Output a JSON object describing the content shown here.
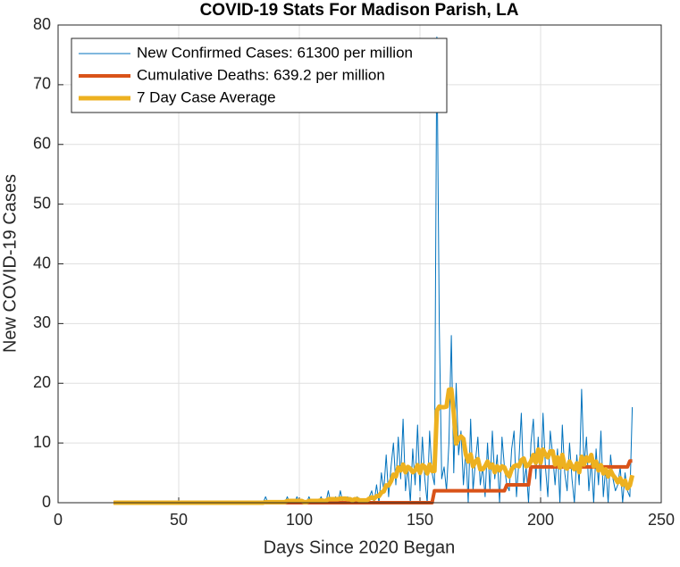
{
  "chart_data": {
    "type": "line",
    "title": "COVID-19 Stats For Madison Parish, LA",
    "x_label": "Days Since 2020 Began",
    "y_label": "New COVID-19 Cases",
    "xlim": [
      0,
      250
    ],
    "xticks": [
      0,
      50,
      100,
      150,
      200,
      250
    ],
    "ylim": [
      0,
      80
    ],
    "yticks": [
      0,
      10,
      20,
      30,
      40,
      50,
      60,
      70,
      80
    ],
    "grid": true,
    "legend": "upper-left",
    "x": [
      23,
      24,
      25,
      26,
      27,
      28,
      29,
      30,
      31,
      32,
      33,
      34,
      35,
      36,
      37,
      38,
      39,
      40,
      41,
      42,
      43,
      44,
      45,
      46,
      47,
      48,
      49,
      50,
      51,
      52,
      53,
      54,
      55,
      56,
      57,
      58,
      59,
      60,
      61,
      62,
      63,
      64,
      65,
      66,
      67,
      68,
      69,
      70,
      71,
      72,
      73,
      74,
      75,
      76,
      77,
      78,
      79,
      80,
      81,
      82,
      83,
      84,
      85,
      86,
      87,
      88,
      89,
      90,
      91,
      92,
      93,
      94,
      95,
      96,
      97,
      98,
      99,
      100,
      101,
      102,
      103,
      104,
      105,
      106,
      107,
      108,
      109,
      110,
      111,
      112,
      113,
      114,
      115,
      116,
      117,
      118,
      119,
      120,
      121,
      122,
      123,
      124,
      125,
      126,
      127,
      128,
      129,
      130,
      131,
      132,
      133,
      134,
      135,
      136,
      137,
      138,
      139,
      140,
      141,
      142,
      143,
      144,
      145,
      146,
      147,
      148,
      149,
      150,
      151,
      152,
      153,
      154,
      155,
      156,
      157,
      158,
      159,
      160,
      161,
      162,
      163,
      164,
      165,
      166,
      167,
      168,
      169,
      170,
      171,
      172,
      173,
      174,
      175,
      176,
      177,
      178,
      179,
      180,
      181,
      182,
      183,
      184,
      185,
      186,
      187,
      188,
      189,
      190,
      191,
      192,
      193,
      194,
      195,
      196,
      197,
      198,
      199,
      200,
      201,
      202,
      203,
      204,
      205,
      206,
      207,
      208,
      209,
      210,
      211,
      212,
      213,
      214,
      215,
      216,
      217,
      218,
      219,
      220,
      221,
      222,
      223,
      224,
      225,
      226,
      227,
      228,
      229,
      230,
      231,
      232,
      233,
      234,
      235,
      236,
      237,
      238
    ],
    "series": [
      {
        "name": "New Confirmed Cases: 61300 per million",
        "color": "#0072BD",
        "width": 1,
        "values": [
          0,
          0,
          0,
          0,
          0,
          0,
          0,
          0,
          0,
          0,
          0,
          0,
          0,
          0,
          0,
          0,
          0,
          0,
          0,
          0,
          0,
          0,
          0,
          0,
          0,
          0,
          0,
          0,
          0,
          0,
          0,
          0,
          0,
          0,
          0,
          0,
          0,
          0,
          0,
          0,
          0,
          0,
          0,
          0,
          0,
          0,
          0,
          0,
          0,
          0,
          0,
          0,
          0,
          0,
          0,
          0,
          0,
          0,
          0,
          0,
          0,
          0,
          0,
          1,
          0,
          0,
          0,
          0,
          0,
          0,
          0,
          0,
          1,
          0,
          0,
          0,
          1,
          0,
          0,
          0,
          0,
          1,
          0,
          0,
          0,
          0,
          1,
          0,
          0,
          2,
          0,
          0,
          1,
          0,
          2,
          0,
          0,
          1,
          0,
          0,
          0,
          1,
          0,
          0,
          0,
          0,
          1,
          2,
          0,
          3,
          0,
          5,
          2,
          8,
          1,
          6,
          10,
          3,
          11,
          4,
          14,
          2,
          6,
          0,
          9,
          3,
          13,
          2,
          11,
          4,
          0,
          12,
          5,
          3,
          78,
          30,
          4,
          6,
          2,
          10,
          28,
          5,
          20,
          8,
          12,
          3,
          9,
          0,
          14,
          2,
          7,
          11,
          3,
          6,
          1,
          10,
          2,
          12,
          4,
          8,
          0,
          11,
          6,
          3,
          2,
          9,
          12,
          1,
          7,
          15,
          3,
          6,
          0,
          10,
          14,
          4,
          11,
          2,
          15,
          6,
          1,
          12,
          8,
          3,
          9,
          0,
          13,
          5,
          2,
          10,
          4,
          0,
          8,
          3,
          19,
          6,
          11,
          2,
          7,
          0,
          9,
          3,
          12,
          1,
          6,
          0,
          8,
          4,
          2,
          3,
          6,
          0,
          5,
          2,
          1,
          16
        ]
      },
      {
        "name": "Cumulative Deaths: 639.2 per million",
        "color": "#D95319",
        "width": 4,
        "values": [
          0,
          0,
          0,
          0,
          0,
          0,
          0,
          0,
          0,
          0,
          0,
          0,
          0,
          0,
          0,
          0,
          0,
          0,
          0,
          0,
          0,
          0,
          0,
          0,
          0,
          0,
          0,
          0,
          0,
          0,
          0,
          0,
          0,
          0,
          0,
          0,
          0,
          0,
          0,
          0,
          0,
          0,
          0,
          0,
          0,
          0,
          0,
          0,
          0,
          0,
          0,
          0,
          0,
          0,
          0,
          0,
          0,
          0,
          0,
          0,
          0,
          0,
          0,
          0,
          0,
          0,
          0,
          0,
          0,
          0,
          0,
          0,
          0,
          0,
          0,
          0,
          0,
          0,
          0,
          0,
          0,
          0,
          0,
          0,
          0,
          0,
          0,
          0,
          0,
          0,
          0,
          0,
          0,
          0,
          0,
          0,
          0,
          0,
          0,
          0,
          0,
          0,
          0,
          0,
          0,
          0,
          0,
          0,
          0,
          0,
          0,
          0,
          0,
          0,
          0,
          0,
          0,
          0,
          0,
          0,
          0,
          0,
          0,
          0,
          0,
          0,
          0,
          0,
          0,
          0,
          0,
          0,
          0,
          2,
          2,
          2,
          2,
          2,
          2,
          2,
          2,
          2,
          2,
          2,
          2,
          2,
          2,
          2,
          2,
          2,
          2,
          2,
          2,
          2,
          2,
          2,
          2,
          2,
          2,
          2,
          2,
          2,
          2,
          3,
          3,
          3,
          3,
          3,
          3,
          3,
          3,
          3,
          3,
          6,
          6,
          6,
          6,
          6,
          6,
          6,
          6,
          6,
          6,
          6,
          6,
          6,
          6,
          6,
          6,
          6,
          6,
          6,
          6,
          6,
          6,
          6,
          6,
          6,
          6,
          6,
          6,
          6,
          6,
          6,
          6,
          6,
          6,
          6,
          6,
          6,
          6,
          6,
          6,
          6,
          7,
          7
        ]
      },
      {
        "name": "7 Day Case Average",
        "color": "#EDB120",
        "width": 5,
        "values": [
          0,
          0,
          0,
          0,
          0,
          0,
          0,
          0,
          0,
          0,
          0,
          0,
          0,
          0,
          0,
          0,
          0,
          0,
          0,
          0,
          0,
          0,
          0,
          0,
          0,
          0,
          0,
          0,
          0,
          0,
          0,
          0,
          0,
          0,
          0,
          0,
          0,
          0,
          0,
          0,
          0,
          0,
          0,
          0,
          0,
          0,
          0,
          0,
          0,
          0,
          0,
          0,
          0,
          0,
          0,
          0,
          0,
          0,
          0,
          0,
          0,
          0,
          0,
          0.1,
          0.1,
          0.1,
          0.1,
          0.1,
          0.1,
          0.1,
          0.1,
          0.1,
          0.3,
          0.3,
          0.3,
          0.3,
          0.3,
          0.3,
          0.3,
          0.1,
          0.1,
          0.3,
          0.3,
          0.3,
          0.3,
          0.3,
          0.4,
          0.3,
          0.3,
          0.6,
          0.6,
          0.6,
          0.6,
          0.6,
          0.7,
          0.7,
          0.7,
          0.6,
          0.6,
          0.4,
          0.6,
          0.6,
          0.4,
          0.4,
          0.4,
          0.4,
          0.7,
          0.9,
          0.7,
          1.1,
          1.1,
          1.7,
          1.9,
          2.9,
          2.9,
          3.6,
          4.7,
          4.4,
          5.9,
          5.4,
          6.4,
          5.1,
          6.0,
          5.7,
          5.1,
          5.4,
          6.3,
          5.0,
          6.3,
          6.0,
          4.9,
          6.4,
          5.3,
          5.3,
          15.4,
          16.1,
          16.0,
          16.0,
          16.1,
          18.9,
          19.0,
          15.0,
          9.9,
          10.7,
          11.1,
          10.7,
          8.1,
          6.9,
          8.1,
          6.1,
          6.9,
          7.3,
          5.6,
          5.6,
          6.1,
          6.9,
          5.9,
          6.4,
          5.1,
          6.1,
          5.4,
          6.1,
          5.9,
          4.9,
          4.4,
          5.6,
          6.1,
          6.3,
          6.1,
          7.1,
          7.4,
          6.1,
          6.3,
          6.9,
          8.0,
          6.7,
          8.9,
          6.7,
          8.9,
          8.1,
          7.6,
          8.6,
          8.6,
          6.4,
          7.6,
          5.9,
          8.0,
          6.0,
          5.7,
          6.9,
          6.1,
          5.6,
          6.6,
          5.1,
          7.7,
          6.4,
          7.6,
          7.0,
          8.0,
          6.1,
          6.9,
          5.4,
          6.3,
          4.9,
          5.6,
          4.4,
          5.4,
          4.6,
          4.1,
          3.4,
          4.1,
          3.0,
          3.7,
          2.4,
          2.9,
          4.6
        ]
      }
    ]
  }
}
